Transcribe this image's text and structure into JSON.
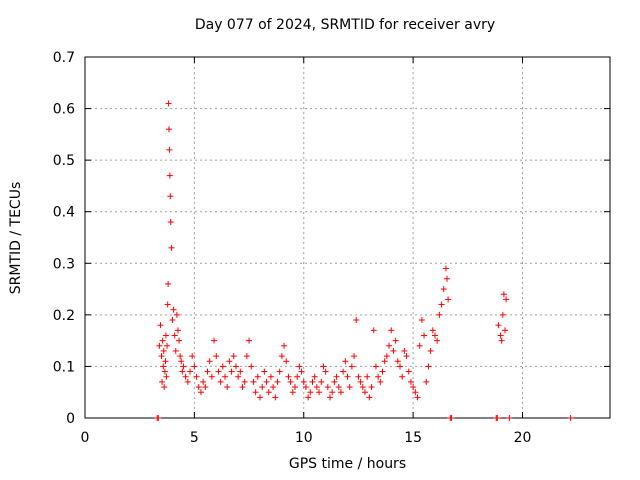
{
  "chart_data": {
    "type": "scatter",
    "title": "Day 077 of 2024, SRMTID for receiver avry",
    "xlabel": "GPS time / hours",
    "ylabel": "SRMTID / TECUs",
    "xlim": [
      0,
      24
    ],
    "ylim": [
      0,
      0.7
    ],
    "xticks": [
      0,
      5,
      10,
      15,
      20
    ],
    "yticks": [
      0,
      0.1,
      0.2,
      0.3,
      0.4,
      0.5,
      0.6,
      0.7
    ],
    "grid": true,
    "marker": "+",
    "color": "#ff0000",
    "series": [
      {
        "name": "SRMTID",
        "x": [
          3.4,
          3.45,
          3.5,
          3.52,
          3.55,
          3.58,
          3.6,
          3.62,
          3.65,
          3.68,
          3.7,
          3.72,
          3.75,
          3.78,
          3.8,
          3.82,
          3.84,
          3.86,
          3.88,
          3.9,
          3.92,
          3.95,
          4.0,
          4.05,
          4.1,
          4.15,
          4.2,
          4.25,
          4.3,
          4.35,
          4.4,
          4.45,
          4.5,
          4.6,
          4.7,
          4.8,
          4.9,
          5.0,
          5.1,
          5.2,
          5.3,
          5.4,
          5.5,
          5.6,
          5.7,
          5.8,
          5.9,
          6.0,
          6.1,
          6.2,
          6.3,
          6.4,
          6.5,
          6.6,
          6.7,
          6.8,
          6.9,
          7.0,
          7.1,
          7.2,
          7.3,
          7.4,
          7.5,
          7.6,
          7.7,
          7.8,
          7.9,
          8.0,
          8.1,
          8.2,
          8.3,
          8.4,
          8.5,
          8.6,
          8.7,
          8.8,
          8.9,
          9.0,
          9.1,
          9.2,
          9.3,
          9.4,
          9.5,
          9.6,
          9.7,
          9.8,
          9.9,
          10.0,
          10.1,
          10.2,
          10.3,
          10.4,
          10.5,
          10.6,
          10.7,
          10.8,
          10.9,
          11.0,
          11.1,
          11.2,
          11.3,
          11.4,
          11.5,
          11.6,
          11.7,
          11.8,
          11.9,
          12.0,
          12.1,
          12.2,
          12.3,
          12.4,
          12.5,
          12.6,
          12.7,
          12.8,
          12.9,
          13.0,
          13.1,
          13.2,
          13.3,
          13.4,
          13.5,
          13.6,
          13.7,
          13.8,
          13.9,
          14.0,
          14.1,
          14.2,
          14.3,
          14.4,
          14.5,
          14.6,
          14.7,
          14.8,
          14.9,
          15.0,
          15.1,
          15.2,
          15.3,
          15.4,
          15.5,
          15.6,
          15.7,
          15.8,
          15.9,
          16.0,
          16.1,
          16.2,
          16.3,
          16.4,
          16.5,
          16.55,
          16.6,
          18.9,
          19.0,
          19.05,
          19.1,
          19.15,
          19.2,
          19.25,
          3.3,
          3.35,
          16.7,
          16.75,
          18.8,
          18.85,
          19.4,
          22.2
        ],
        "y": [
          0.14,
          0.18,
          0.12,
          0.07,
          0.15,
          0.1,
          0.13,
          0.06,
          0.09,
          0.11,
          0.16,
          0.08,
          0.14,
          0.22,
          0.26,
          0.61,
          0.56,
          0.52,
          0.47,
          0.43,
          0.38,
          0.33,
          0.19,
          0.21,
          0.16,
          0.13,
          0.2,
          0.17,
          0.15,
          0.12,
          0.11,
          0.09,
          0.1,
          0.08,
          0.07,
          0.09,
          0.12,
          0.1,
          0.08,
          0.06,
          0.05,
          0.07,
          0.06,
          0.09,
          0.11,
          0.08,
          0.15,
          0.12,
          0.09,
          0.07,
          0.1,
          0.08,
          0.06,
          0.11,
          0.09,
          0.12,
          0.1,
          0.08,
          0.09,
          0.06,
          0.07,
          0.12,
          0.15,
          0.1,
          0.07,
          0.05,
          0.08,
          0.04,
          0.06,
          0.09,
          0.07,
          0.05,
          0.08,
          0.06,
          0.04,
          0.07,
          0.09,
          0.12,
          0.14,
          0.11,
          0.08,
          0.07,
          0.05,
          0.06,
          0.08,
          0.1,
          0.09,
          0.07,
          0.06,
          0.04,
          0.05,
          0.07,
          0.08,
          0.06,
          0.05,
          0.07,
          0.1,
          0.09,
          0.06,
          0.04,
          0.05,
          0.07,
          0.08,
          0.06,
          0.05,
          0.09,
          0.11,
          0.08,
          0.06,
          0.1,
          0.12,
          0.19,
          0.08,
          0.07,
          0.06,
          0.05,
          0.08,
          0.04,
          0.06,
          0.17,
          0.1,
          0.08,
          0.07,
          0.09,
          0.11,
          0.12,
          0.14,
          0.17,
          0.13,
          0.15,
          0.11,
          0.1,
          0.08,
          0.13,
          0.12,
          0.09,
          0.07,
          0.06,
          0.05,
          0.04,
          0.14,
          0.19,
          0.16,
          0.07,
          0.1,
          0.13,
          0.17,
          0.16,
          0.15,
          0.2,
          0.22,
          0.25,
          0.29,
          0.27,
          0.23,
          0.18,
          0.16,
          0.15,
          0.2,
          0.24,
          0.17,
          0.23,
          0.0,
          0.0,
          0.0,
          0.0,
          0.0,
          0.0,
          0.0,
          0.0
        ]
      }
    ]
  }
}
